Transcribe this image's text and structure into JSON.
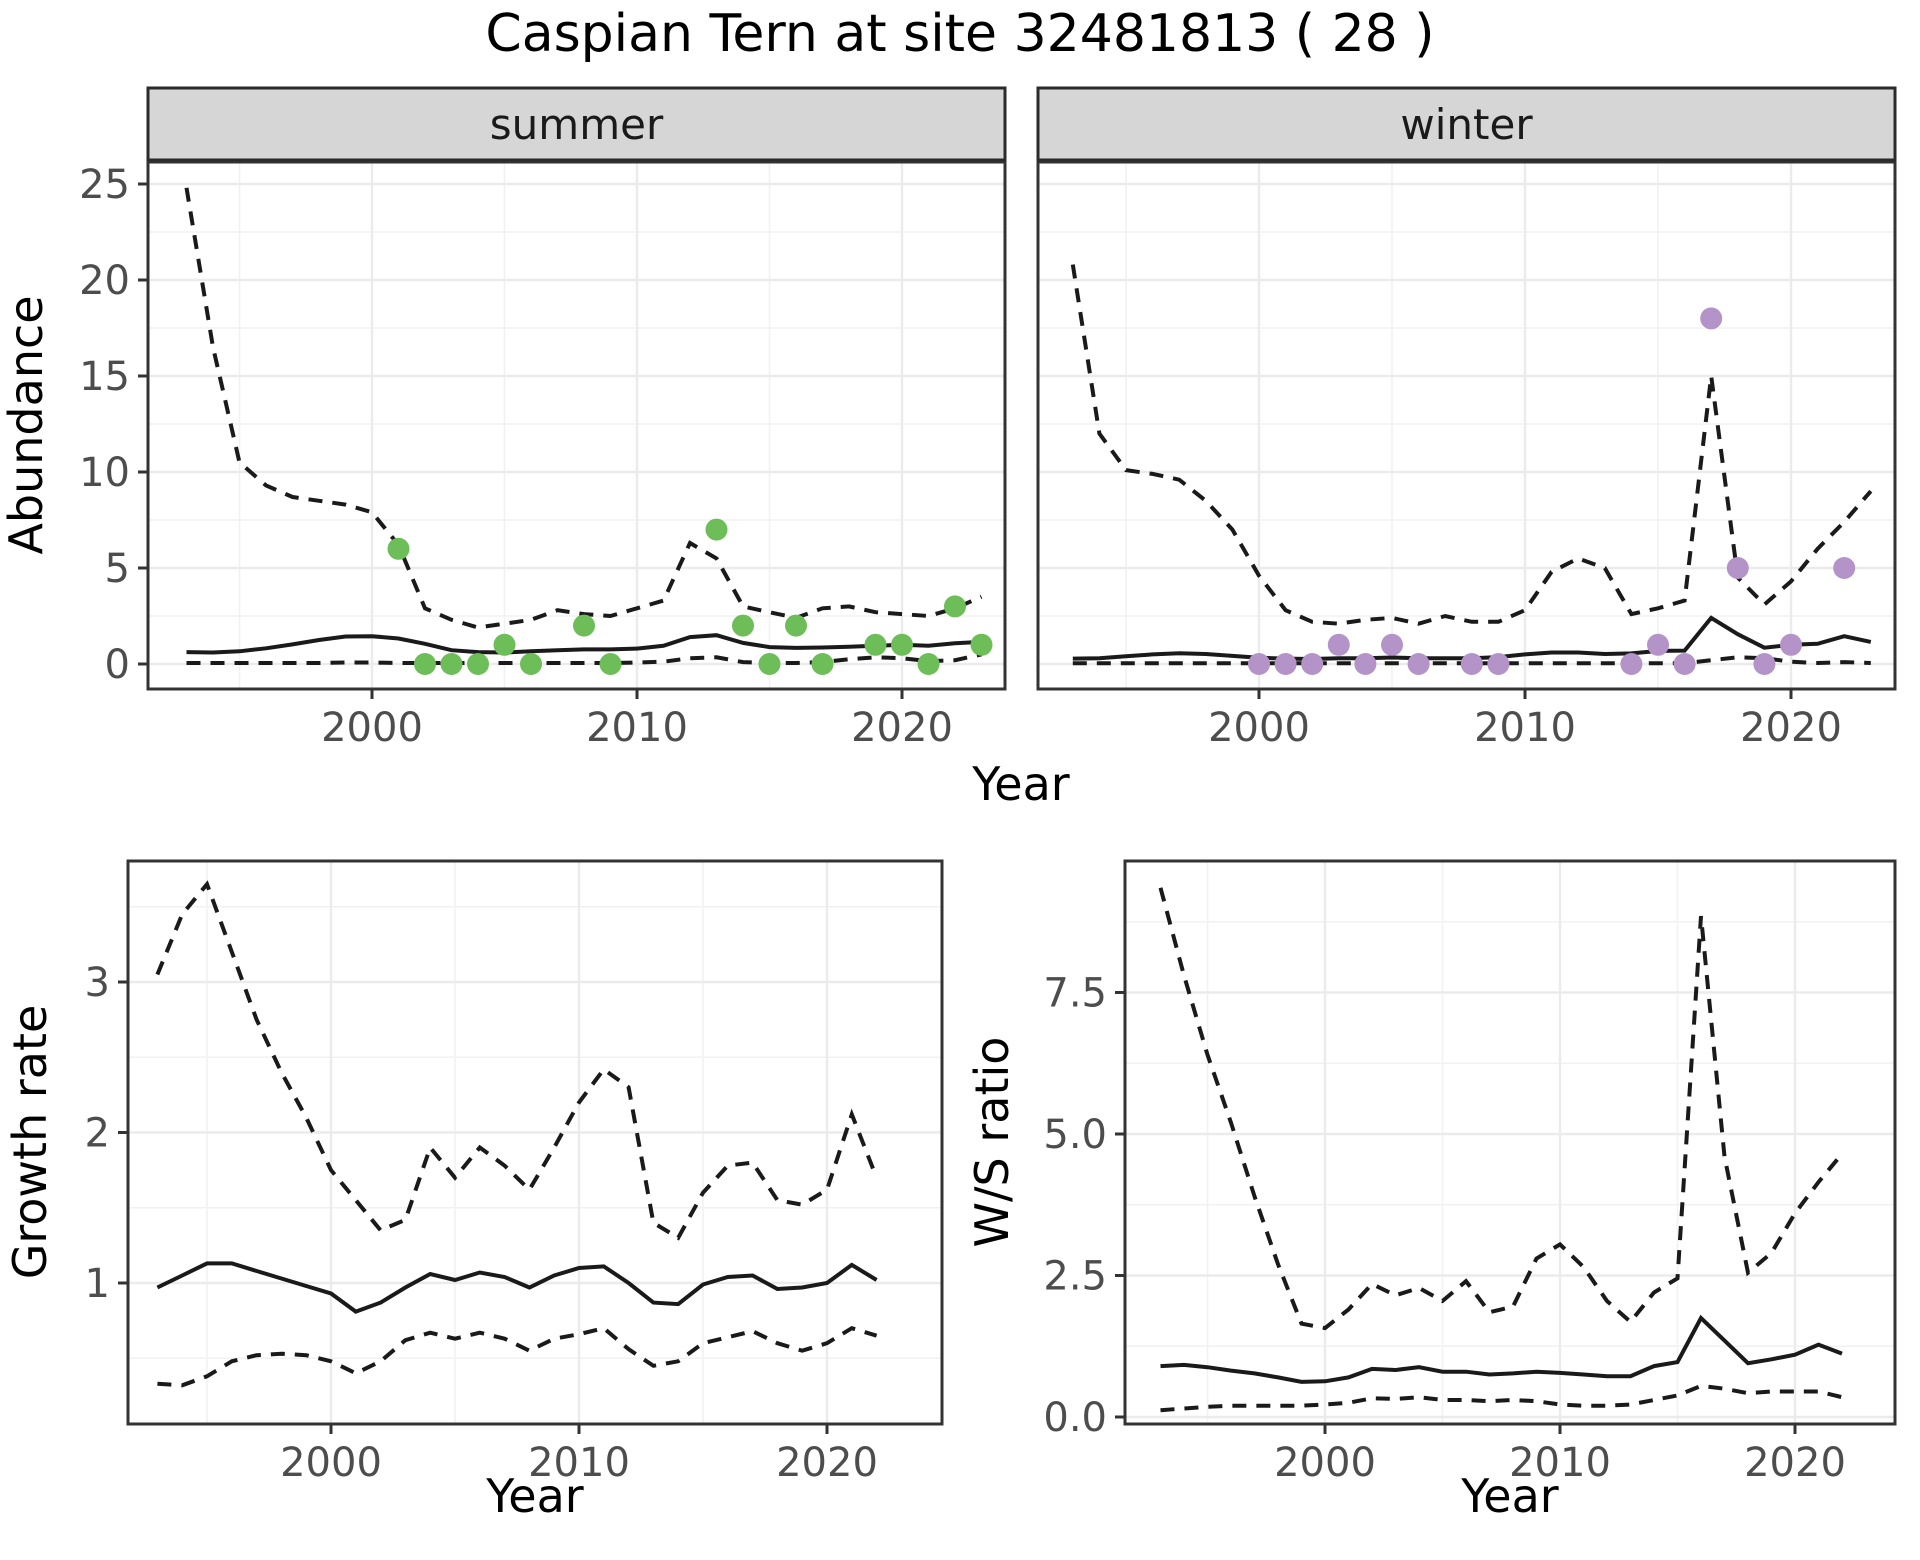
{
  "title": "Caspian Tern at site 32481813 ( 28 )",
  "colors": {
    "summer_point": "#6dbd58",
    "winter_point": "#b493c8",
    "line": "#1a1a1a",
    "grid_major": "#ebebeb",
    "grid_minor": "#f2f2f2",
    "panel_border": "#333333",
    "strip_fill": "#d6d6d6",
    "strip_border": "#2b2b2b",
    "tick_text": "#4d4d4d",
    "axis_title_text": "#000000"
  },
  "chart_data": [
    {
      "type": "line",
      "facet": "summer",
      "ylabel": "Abundance",
      "xlabel": "Year",
      "x_ticks": {
        "values": [
          2000,
          2010,
          2020
        ],
        "labels": [
          "2000",
          "2010",
          "2020"
        ]
      },
      "y_ticks": {
        "values": [
          0,
          5,
          10,
          15,
          20,
          25
        ],
        "labels": [
          "0",
          "5",
          "10",
          "15",
          "20",
          "25"
        ]
      },
      "xlim": [
        1991.5,
        2024.1
      ],
      "ylim": [
        -1.3,
        26.1
      ],
      "grid": true,
      "years": [
        1993,
        1994,
        1995,
        1996,
        1997,
        1998,
        1999,
        2000,
        2001,
        2002,
        2003,
        2004,
        2005,
        2006,
        2007,
        2008,
        2009,
        2010,
        2011,
        2012,
        2013,
        2014,
        2015,
        2016,
        2017,
        2018,
        2019,
        2020,
        2021,
        2022,
        2023
      ],
      "series": [
        {
          "name": "upper_ci",
          "style": "dashed",
          "values": [
            24.8,
            16.5,
            10.5,
            9.3,
            8.7,
            8.5,
            8.3,
            7.9,
            6.2,
            2.9,
            2.3,
            1.9,
            2.1,
            2.3,
            2.8,
            2.6,
            2.5,
            2.9,
            3.3,
            6.3,
            5.5,
            3.0,
            2.7,
            2.4,
            2.9,
            3.0,
            2.7,
            2.6,
            2.5,
            2.9,
            3.5
          ]
        },
        {
          "name": "median",
          "style": "solid",
          "values": [
            0.62,
            0.6,
            0.66,
            0.82,
            1.02,
            1.25,
            1.43,
            1.45,
            1.33,
            1.05,
            0.72,
            0.62,
            0.6,
            0.66,
            0.72,
            0.76,
            0.76,
            0.8,
            0.95,
            1.4,
            1.5,
            1.1,
            0.88,
            0.84,
            0.86,
            0.9,
            0.95,
            1.0,
            0.95,
            1.08,
            1.15
          ]
        },
        {
          "name": "lower_ci",
          "style": "dashed",
          "values": [
            0.05,
            0.05,
            0.05,
            0.05,
            0.05,
            0.05,
            0.08,
            0.08,
            0.05,
            0.05,
            0.05,
            0.05,
            0.05,
            0.05,
            0.05,
            0.05,
            0.05,
            0.08,
            0.12,
            0.3,
            0.35,
            0.1,
            0.05,
            0.05,
            0.1,
            0.25,
            0.35,
            0.3,
            0.15,
            0.2,
            0.5
          ]
        }
      ],
      "points": {
        "name": "observed_counts",
        "color": "#6dbd58",
        "data": [
          [
            2001,
            6
          ],
          [
            2002,
            0
          ],
          [
            2003,
            0
          ],
          [
            2004,
            0
          ],
          [
            2005,
            1
          ],
          [
            2006,
            0
          ],
          [
            2008,
            2
          ],
          [
            2009,
            0
          ],
          [
            2013,
            7
          ],
          [
            2014,
            2
          ],
          [
            2015,
            0
          ],
          [
            2016,
            2
          ],
          [
            2017,
            0
          ],
          [
            2019,
            1
          ],
          [
            2020,
            1
          ],
          [
            2021,
            0
          ],
          [
            2022,
            3
          ],
          [
            2023,
            1
          ]
        ]
      }
    },
    {
      "type": "line",
      "facet": "winter",
      "ylabel": "Abundance",
      "xlabel": "Year",
      "x_ticks": {
        "values": [
          2000,
          2010,
          2020
        ],
        "labels": [
          "2000",
          "2010",
          "2020"
        ]
      },
      "y_ticks": {
        "values": [
          0,
          5,
          10,
          15,
          20,
          25
        ],
        "labels": [
          "0",
          "5",
          "10",
          "15",
          "20",
          "25"
        ]
      },
      "xlim": [
        1991.6,
        2024.0
      ],
      "ylim": [
        -1.3,
        26.1
      ],
      "grid": true,
      "years": [
        1993,
        1994,
        1995,
        1996,
        1997,
        1998,
        1999,
        2000,
        2001,
        2002,
        2003,
        2004,
        2005,
        2006,
        2007,
        2008,
        2009,
        2010,
        2011,
        2012,
        2013,
        2014,
        2015,
        2016,
        2017,
        2018,
        2019,
        2020,
        2021,
        2022,
        2023
      ],
      "series": [
        {
          "name": "upper_ci",
          "style": "dashed",
          "values": [
            20.8,
            12.0,
            10.1,
            9.9,
            9.6,
            8.5,
            7.0,
            4.6,
            2.8,
            2.2,
            2.1,
            2.3,
            2.4,
            2.1,
            2.5,
            2.2,
            2.2,
            2.8,
            4.8,
            5.5,
            5.0,
            2.6,
            2.9,
            3.3,
            15.0,
            4.5,
            3.1,
            4.3,
            6.0,
            7.4,
            9.0
          ]
        },
        {
          "name": "median",
          "style": "solid",
          "values": [
            0.28,
            0.3,
            0.4,
            0.5,
            0.56,
            0.52,
            0.42,
            0.33,
            0.28,
            0.26,
            0.3,
            0.3,
            0.34,
            0.3,
            0.3,
            0.3,
            0.36,
            0.5,
            0.6,
            0.6,
            0.52,
            0.55,
            0.68,
            0.7,
            2.4,
            1.55,
            0.85,
            1.0,
            1.05,
            1.45,
            1.15
          ]
        },
        {
          "name": "lower_ci",
          "style": "dashed",
          "values": [
            0.04,
            0.04,
            0.04,
            0.04,
            0.04,
            0.04,
            0.04,
            0.04,
            0.04,
            0.04,
            0.04,
            0.04,
            0.04,
            0.04,
            0.04,
            0.04,
            0.04,
            0.04,
            0.04,
            0.04,
            0.04,
            0.04,
            0.04,
            0.04,
            0.2,
            0.35,
            0.3,
            0.12,
            0.05,
            0.1,
            0.05
          ]
        }
      ],
      "points": {
        "name": "observed_counts",
        "color": "#b493c8",
        "data": [
          [
            2000,
            0
          ],
          [
            2001,
            0
          ],
          [
            2002,
            0
          ],
          [
            2003,
            1
          ],
          [
            2004,
            0
          ],
          [
            2005,
            1
          ],
          [
            2006,
            0
          ],
          [
            2008,
            0
          ],
          [
            2009,
            0
          ],
          [
            2014,
            0
          ],
          [
            2015,
            1
          ],
          [
            2016,
            0
          ],
          [
            2017,
            18
          ],
          [
            2018,
            5
          ],
          [
            2019,
            0
          ],
          [
            2020,
            1
          ],
          [
            2022,
            5
          ]
        ]
      }
    },
    {
      "type": "line",
      "facet": null,
      "ylabel": "Growth rate",
      "xlabel": "Year",
      "x_ticks": {
        "values": [
          2000,
          2010,
          2020
        ],
        "labels": [
          "2000",
          "2010",
          "2020"
        ]
      },
      "y_ticks": {
        "values": [
          1,
          2,
          3
        ],
        "labels": [
          "1",
          "2",
          "3"
        ]
      },
      "xlim": [
        1991.8,
        2024.6
      ],
      "ylim": [
        0.06,
        3.81
      ],
      "grid": true,
      "years": [
        1993,
        1994,
        1995,
        1996,
        1997,
        1998,
        1999,
        2000,
        2001,
        2002,
        2003,
        2004,
        2005,
        2006,
        2007,
        2008,
        2009,
        2010,
        2011,
        2012,
        2013,
        2014,
        2015,
        2016,
        2017,
        2018,
        2019,
        2020,
        2021,
        2022
      ],
      "series": [
        {
          "name": "upper_ci",
          "style": "dashed",
          "values": [
            3.05,
            3.45,
            3.65,
            3.2,
            2.75,
            2.4,
            2.1,
            1.75,
            1.55,
            1.35,
            1.42,
            1.9,
            1.7,
            1.9,
            1.78,
            1.62,
            1.9,
            2.2,
            2.42,
            2.3,
            1.4,
            1.3,
            1.6,
            1.78,
            1.8,
            1.55,
            1.52,
            1.62,
            2.12,
            1.7
          ]
        },
        {
          "name": "median",
          "style": "solid",
          "values": [
            0.97,
            1.05,
            1.13,
            1.13,
            1.08,
            1.03,
            0.98,
            0.93,
            0.81,
            0.87,
            0.97,
            1.06,
            1.02,
            1.07,
            1.04,
            0.97,
            1.05,
            1.1,
            1.11,
            1.0,
            0.87,
            0.86,
            0.99,
            1.04,
            1.05,
            0.96,
            0.97,
            1.0,
            1.12,
            1.02
          ]
        },
        {
          "name": "lower_ci",
          "style": "dashed",
          "values": [
            0.33,
            0.32,
            0.38,
            0.48,
            0.52,
            0.53,
            0.52,
            0.48,
            0.4,
            0.48,
            0.62,
            0.67,
            0.63,
            0.67,
            0.63,
            0.55,
            0.63,
            0.66,
            0.7,
            0.56,
            0.45,
            0.48,
            0.6,
            0.64,
            0.68,
            0.6,
            0.55,
            0.6,
            0.7,
            0.65
          ]
        }
      ],
      "points": null
    },
    {
      "type": "line",
      "facet": null,
      "ylabel": "W/S ratio",
      "xlabel": "Year",
      "x_ticks": {
        "values": [
          2000,
          2010,
          2020
        ],
        "labels": [
          "2000",
          "2010",
          "2020"
        ]
      },
      "y_ticks": {
        "values": [
          0,
          2.5,
          5,
          7.5
        ],
        "labels": [
          "0.0",
          "2.5",
          "5.0",
          "7.5"
        ]
      },
      "xlim": [
        1991.5,
        2024.3
      ],
      "ylim": [
        -0.12,
        9.87
      ],
      "grid": true,
      "years": [
        1993,
        1994,
        1995,
        1996,
        1997,
        1998,
        1999,
        2000,
        2001,
        2002,
        2003,
        2004,
        2005,
        2006,
        2007,
        2008,
        2009,
        2010,
        2011,
        2012,
        2013,
        2014,
        2015,
        2016,
        2017,
        2018,
        2019,
        2020,
        2021,
        2022
      ],
      "series": [
        {
          "name": "upper_ci",
          "style": "dashed",
          "values": [
            9.35,
            7.8,
            6.4,
            5.2,
            3.9,
            2.7,
            1.65,
            1.57,
            1.9,
            2.35,
            2.15,
            2.28,
            2.05,
            2.4,
            1.85,
            1.95,
            2.8,
            3.05,
            2.65,
            2.05,
            1.68,
            2.2,
            2.45,
            8.85,
            4.6,
            2.55,
            2.9,
            3.6,
            4.15,
            4.65
          ]
        },
        {
          "name": "median",
          "style": "solid",
          "values": [
            0.9,
            0.92,
            0.88,
            0.82,
            0.77,
            0.7,
            0.62,
            0.63,
            0.7,
            0.85,
            0.83,
            0.88,
            0.8,
            0.8,
            0.75,
            0.77,
            0.8,
            0.78,
            0.75,
            0.72,
            0.72,
            0.9,
            0.97,
            1.75,
            1.35,
            0.95,
            1.02,
            1.1,
            1.28,
            1.12
          ]
        },
        {
          "name": "lower_ci",
          "style": "dashed",
          "values": [
            0.12,
            0.15,
            0.18,
            0.2,
            0.2,
            0.2,
            0.2,
            0.22,
            0.25,
            0.33,
            0.32,
            0.35,
            0.3,
            0.3,
            0.28,
            0.3,
            0.28,
            0.22,
            0.2,
            0.2,
            0.22,
            0.3,
            0.38,
            0.55,
            0.5,
            0.42,
            0.45,
            0.45,
            0.45,
            0.35
          ]
        }
      ],
      "points": null
    }
  ]
}
